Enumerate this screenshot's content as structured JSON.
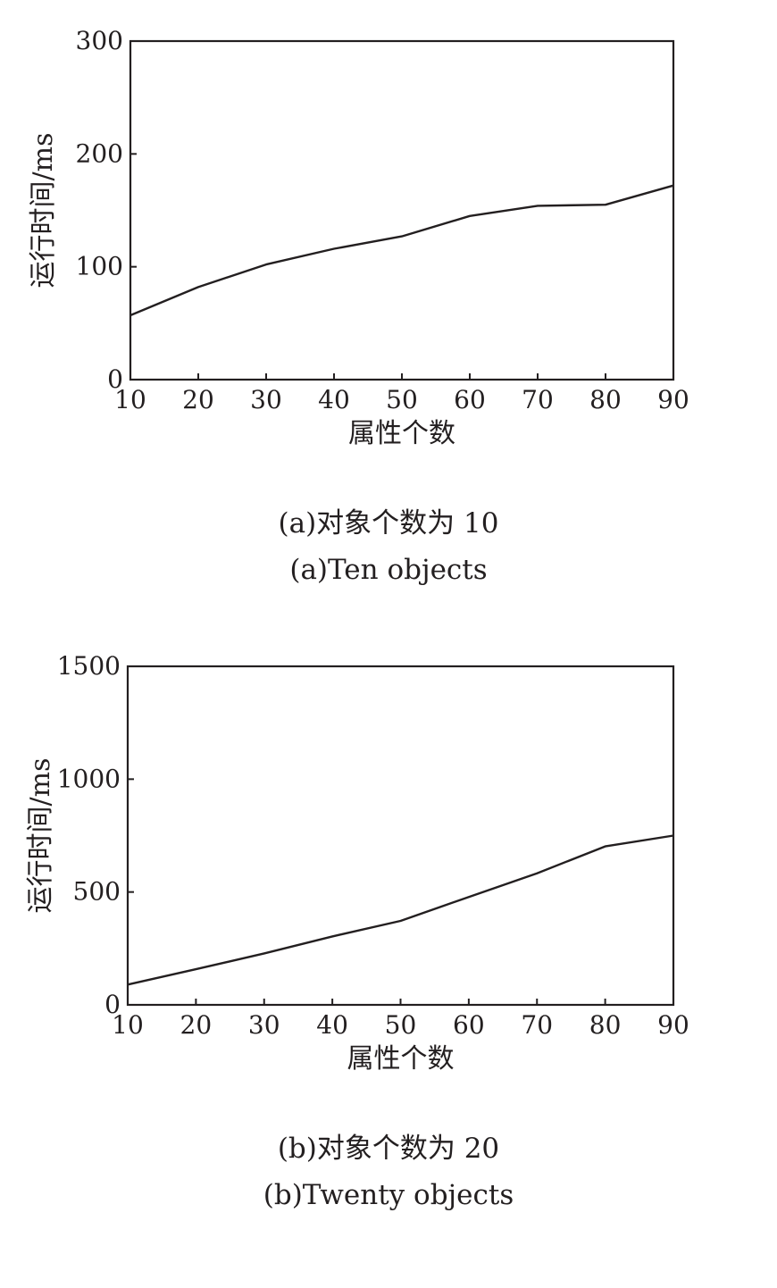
{
  "chart_data": [
    {
      "type": "line",
      "xlabel": "属性个数",
      "ylabel": "运行时间/ms",
      "x": [
        10,
        20,
        30,
        40,
        50,
        60,
        70,
        80,
        90
      ],
      "xticks": [
        "10",
        "20",
        "30",
        "40",
        "50",
        "60",
        "70",
        "80",
        "90"
      ],
      "yticks": [
        "0",
        "100",
        "200",
        "300"
      ],
      "xlim": [
        10,
        90
      ],
      "ylim": [
        0,
        300
      ],
      "grid": false,
      "series": [
        {
          "values": [
            57,
            82,
            102,
            116,
            127,
            145,
            154,
            155,
            172
          ]
        }
      ],
      "caption_cn": "(a)对象个数为 10",
      "caption_en": "(a)Ten objects"
    },
    {
      "type": "line",
      "xlabel": "属性个数",
      "ylabel": "运行时间/ms",
      "x": [
        10,
        20,
        30,
        40,
        50,
        60,
        70,
        80,
        90
      ],
      "xticks": [
        "10",
        "20",
        "30",
        "40",
        "50",
        "60",
        "70",
        "80",
        "90"
      ],
      "yticks": [
        "0",
        "500",
        "1000",
        "1500"
      ],
      "xlim": [
        10,
        90
      ],
      "ylim": [
        0,
        1500
      ],
      "grid": false,
      "series": [
        {
          "values": [
            90,
            158,
            228,
            303,
            372,
            478,
            583,
            702,
            750
          ]
        }
      ],
      "caption_cn": "(b)对象个数为 20",
      "caption_en": "(b)Twenty objects"
    }
  ],
  "colors": {
    "ink": "#231f20",
    "background": "#ffffff"
  }
}
